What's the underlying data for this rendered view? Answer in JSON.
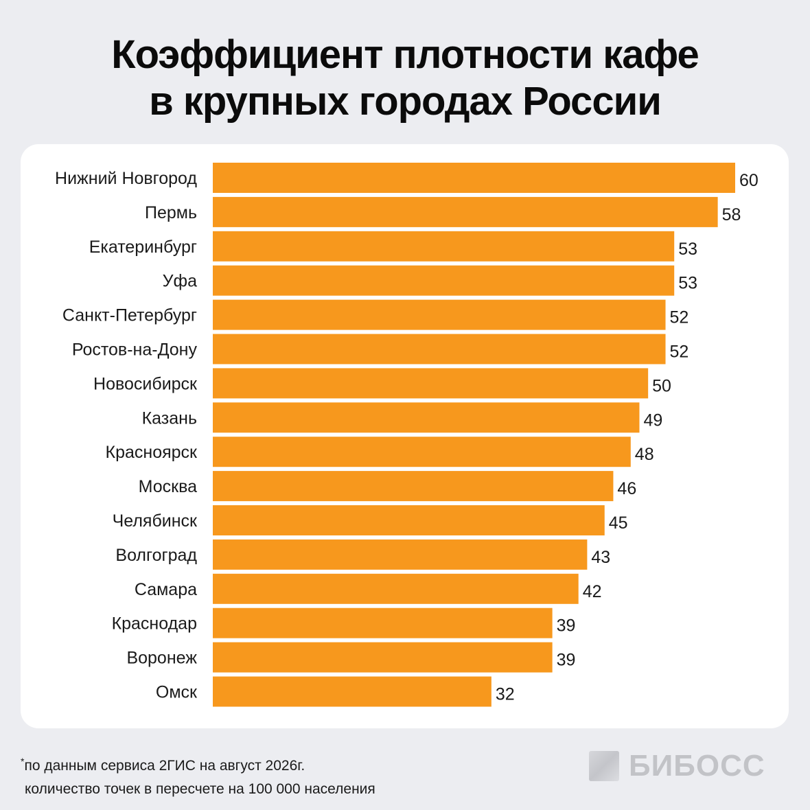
{
  "title": {
    "line1": "Коэффициент плотности кафе",
    "line2": "в крупных городах России"
  },
  "chart_data": {
    "type": "bar",
    "orientation": "horizontal",
    "bar_color": "#f7981d",
    "categories": [
      "Нижний Новгород",
      "Пермь",
      "Екатеринбург",
      "Уфа",
      "Санкт-Петербург",
      "Ростов-на-Дону",
      "Новосибирск",
      "Казань",
      "Красноярск",
      "Москва",
      "Челябинск",
      "Волгоград",
      "Самара",
      "Краснодар",
      "Воронеж",
      "Омск"
    ],
    "values": [
      60,
      58,
      53,
      53,
      52,
      52,
      50,
      49,
      48,
      46,
      45,
      43,
      42,
      39,
      39,
      32
    ],
    "xlim": [
      0,
      60
    ],
    "grid": false,
    "legend": "none"
  },
  "footnote": {
    "marker": "*",
    "line1": "по данным сервиса 2ГИС на август 2026г.",
    "line2": "количество точек в пересчете на 100 000 населения"
  },
  "logo": {
    "text": "БИБОСС"
  }
}
